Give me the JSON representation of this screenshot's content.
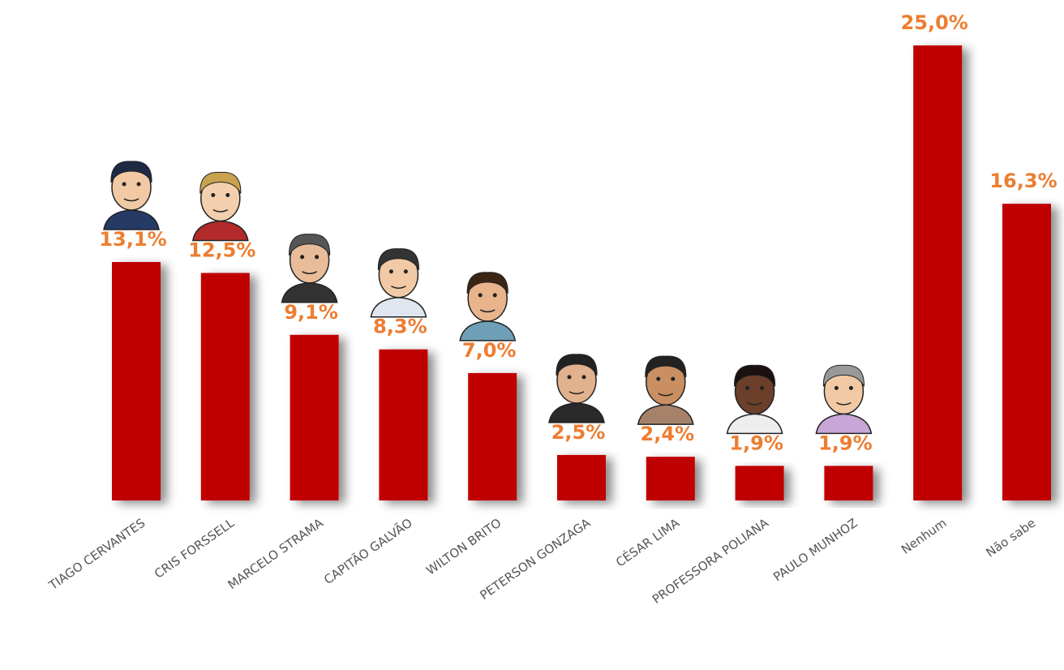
{
  "chart_data": {
    "type": "bar",
    "categories": [
      "TIAGO CERVANTES",
      "CRIS FORSSELL",
      "MARCELO STRAMA",
      "CAPITÃO GALVÃO",
      "WILTON BRITO",
      "PETERSON GONZAGA",
      "CÉSAR LIMA",
      "PROFESSORA POLIANA",
      "PAULO MUNHOZ",
      "Nenhum",
      "Não sabe"
    ],
    "values": [
      13.1,
      12.5,
      9.1,
      8.3,
      7.0,
      2.5,
      2.4,
      1.9,
      1.9,
      25.0,
      16.3
    ],
    "value_labels": [
      "13,1%",
      "12,5%",
      "9,1%",
      "8,3%",
      "7,0%",
      "2,5%",
      "2,4%",
      "1,9%",
      "1,9%",
      "25,0%",
      "16,3%"
    ],
    "color": "#c00000",
    "label_color": "#ed7d31"
  }
}
